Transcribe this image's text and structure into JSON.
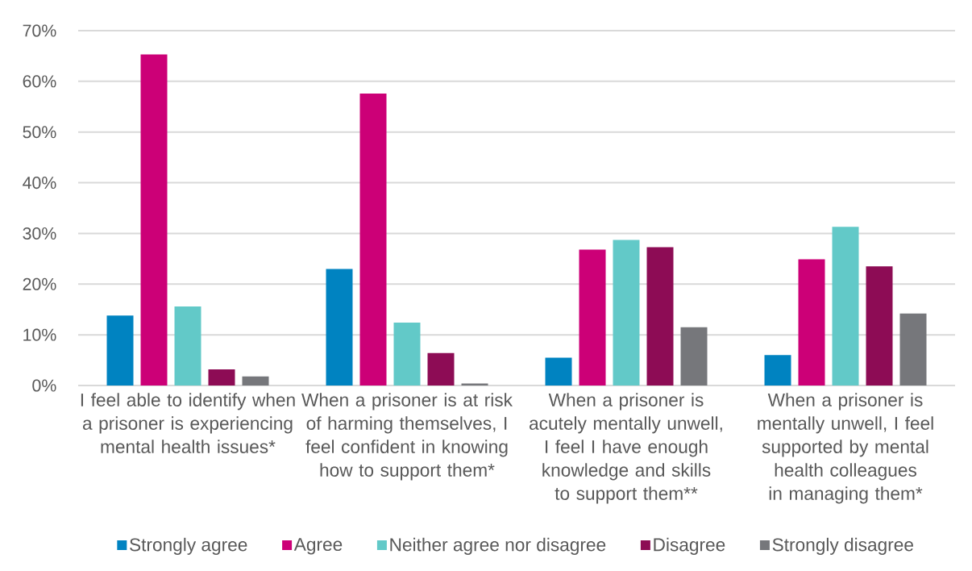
{
  "chart_data": {
    "type": "bar",
    "categories": [
      "I feel able to identify when a prisoner is experiencing mental health issues*",
      "When a prisoner is at risk of harming themselves, I feel confident in knowing how to support them*",
      "When a prisoner is acutely mentally unwell, I feel I have enough knowledge and skills to support them**",
      "When a prisoner is mentally unwell, I feel supported by mental health colleagues in managing them*"
    ],
    "series": [
      {
        "name": "Strongly agree",
        "color": "#0083c1",
        "values": [
          13.8,
          23.0,
          5.5,
          6.0
        ]
      },
      {
        "name": "Agree",
        "color": "#cc0077",
        "values": [
          65.3,
          57.6,
          26.8,
          24.9
        ]
      },
      {
        "name": "Neither agree nor disagree",
        "color": "#62c9c8",
        "values": [
          15.6,
          12.4,
          28.7,
          31.3
        ]
      },
      {
        "name": "Disagree",
        "color": "#8d0c55",
        "values": [
          3.2,
          6.4,
          27.3,
          23.5
        ]
      },
      {
        "name": "Strongly disagree",
        "color": "#76777b",
        "values": [
          1.8,
          0.4,
          11.5,
          14.2
        ]
      }
    ],
    "ylim": [
      0,
      70
    ],
    "yticks": [
      {
        "value": 0,
        "label": "0%"
      },
      {
        "value": 10,
        "label": "10%"
      },
      {
        "value": 20,
        "label": "20%"
      },
      {
        "value": 30,
        "label": "30%"
      },
      {
        "value": 40,
        "label": "40%"
      },
      {
        "value": 50,
        "label": "50%"
      },
      {
        "value": 60,
        "label": "60%"
      },
      {
        "value": 70,
        "label": "70%"
      }
    ],
    "grid": "y",
    "legend": "bottom"
  }
}
